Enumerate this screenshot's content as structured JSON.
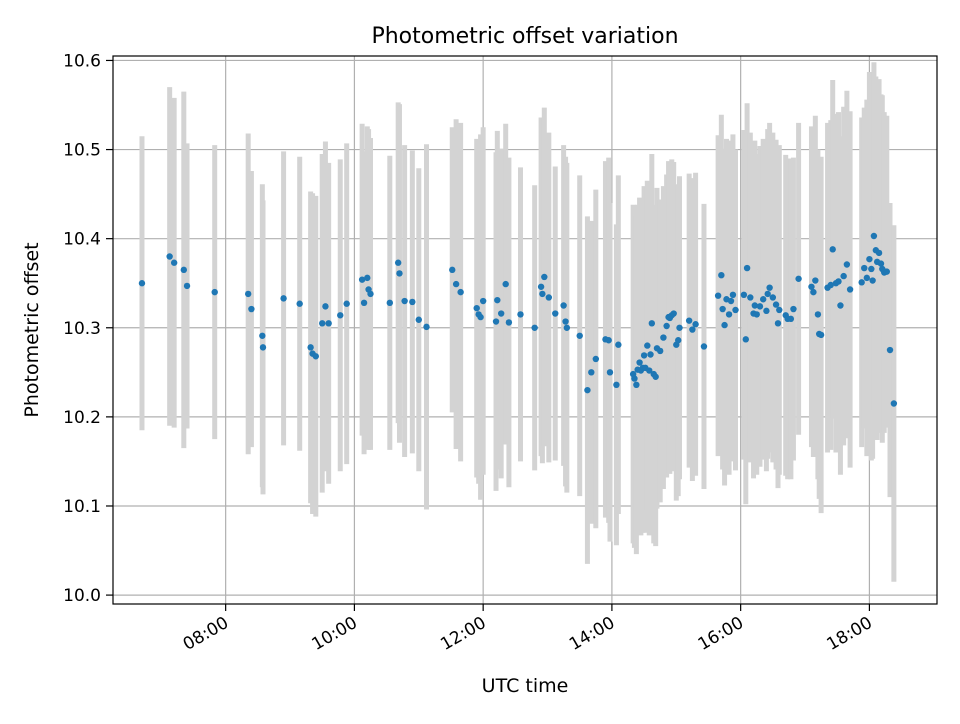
{
  "chart_data": {
    "type": "scatter",
    "title": "Photometric offset variation",
    "xlabel": "UTC time",
    "ylabel": "Photometric offset",
    "xlim": [
      6.25,
      19.05
    ],
    "ylim": [
      9.99,
      10.605
    ],
    "x_ticks": [
      {
        "value": 8,
        "label": "08:00"
      },
      {
        "value": 10,
        "label": "10:00"
      },
      {
        "value": 12,
        "label": "12:00"
      },
      {
        "value": 14,
        "label": "14:00"
      },
      {
        "value": 16,
        "label": "16:00"
      },
      {
        "value": 18,
        "label": "18:00"
      }
    ],
    "y_ticks": [
      {
        "value": 10.0,
        "label": "10.0"
      },
      {
        "value": 10.1,
        "label": "10.1"
      },
      {
        "value": 10.2,
        "label": "10.2"
      },
      {
        "value": 10.3,
        "label": "10.3"
      },
      {
        "value": 10.4,
        "label": "10.4"
      },
      {
        "value": 10.5,
        "label": "10.5"
      },
      {
        "value": 10.6,
        "label": "10.6"
      }
    ],
    "grid": true,
    "colors": {
      "points": "#1f77b4",
      "errorbars": "#d3d3d3",
      "grid": "#b0b0b0"
    },
    "series": [
      {
        "points": [
          [
            6.7,
            10.35,
            0.165
          ],
          [
            7.13,
            10.38,
            0.19
          ],
          [
            7.2,
            10.373,
            0.185
          ],
          [
            7.35,
            10.365,
            0.2
          ],
          [
            7.4,
            10.347,
            0.16
          ],
          [
            7.83,
            10.34,
            0.165
          ],
          [
            8.35,
            10.338,
            0.18
          ],
          [
            8.4,
            10.321,
            0.155
          ],
          [
            8.57,
            10.291,
            0.17
          ],
          [
            8.58,
            10.278,
            0.165
          ],
          [
            8.9,
            10.333,
            0.165
          ],
          [
            9.15,
            10.327,
            0.165
          ],
          [
            9.32,
            10.278,
            0.175
          ],
          [
            9.35,
            10.271,
            0.18
          ],
          [
            9.4,
            10.268,
            0.18
          ],
          [
            9.5,
            10.305,
            0.19
          ],
          [
            9.55,
            10.324,
            0.185
          ],
          [
            9.6,
            10.305,
            0.18
          ],
          [
            9.78,
            10.314,
            0.175
          ],
          [
            9.88,
            10.327,
            0.18
          ],
          [
            10.12,
            10.354,
            0.175
          ],
          [
            10.15,
            10.328,
            0.17
          ],
          [
            10.2,
            10.356,
            0.17
          ],
          [
            10.22,
            10.343,
            0.18
          ],
          [
            10.25,
            10.338,
            0.175
          ],
          [
            10.55,
            10.328,
            0.165
          ],
          [
            10.68,
            10.373,
            0.18
          ],
          [
            10.7,
            10.361,
            0.19
          ],
          [
            10.78,
            10.33,
            0.175
          ],
          [
            10.9,
            10.329,
            0.17
          ],
          [
            11.0,
            10.309,
            0.17
          ],
          [
            11.12,
            10.301,
            0.205
          ],
          [
            11.52,
            10.365,
            0.16
          ],
          [
            11.58,
            10.349,
            0.185
          ],
          [
            11.65,
            10.34,
            0.19
          ],
          [
            11.9,
            10.322,
            0.19
          ],
          [
            11.93,
            10.315,
            0.19
          ],
          [
            11.96,
            10.312,
            0.205
          ],
          [
            12.0,
            10.33,
            0.195
          ],
          [
            12.2,
            10.307,
            0.19
          ],
          [
            12.22,
            10.331,
            0.19
          ],
          [
            12.28,
            10.316,
            0.185
          ],
          [
            12.35,
            10.349,
            0.18
          ],
          [
            12.4,
            10.306,
            0.185
          ],
          [
            12.58,
            10.315,
            0.165
          ],
          [
            12.8,
            10.3,
            0.16
          ],
          [
            12.9,
            10.346,
            0.19
          ],
          [
            12.92,
            10.338,
            0.19
          ],
          [
            12.95,
            10.357,
            0.19
          ],
          [
            13.02,
            10.334,
            0.185
          ],
          [
            13.12,
            10.316,
            0.165
          ],
          [
            13.25,
            10.325,
            0.18
          ],
          [
            13.28,
            10.307,
            0.185
          ],
          [
            13.3,
            10.3,
            0.185
          ],
          [
            13.5,
            10.291,
            0.18
          ],
          [
            13.62,
            10.23,
            0.195
          ],
          [
            13.68,
            10.25,
            0.17
          ],
          [
            13.75,
            10.265,
            0.19
          ],
          [
            13.9,
            10.287,
            0.2
          ],
          [
            13.95,
            10.286,
            0.205
          ],
          [
            13.97,
            10.25,
            0.19
          ],
          [
            14.07,
            10.236,
            0.18
          ],
          [
            14.1,
            10.281,
            0.19
          ],
          [
            14.33,
            10.248,
            0.19
          ],
          [
            14.35,
            10.243,
            0.19
          ],
          [
            14.38,
            10.236,
            0.19
          ],
          [
            14.4,
            10.253,
            0.185
          ],
          [
            14.43,
            10.261,
            0.185
          ],
          [
            14.45,
            10.252,
            0.185
          ],
          [
            14.48,
            10.255,
            0.185
          ],
          [
            14.5,
            10.269,
            0.19
          ],
          [
            14.52,
            10.255,
            0.185
          ],
          [
            14.55,
            10.28,
            0.185
          ],
          [
            14.58,
            10.252,
            0.185
          ],
          [
            14.6,
            10.27,
            0.185
          ],
          [
            14.62,
            10.305,
            0.19
          ],
          [
            14.65,
            10.248,
            0.19
          ],
          [
            14.68,
            10.245,
            0.19
          ],
          [
            14.7,
            10.277,
            0.18
          ],
          [
            14.75,
            10.274,
            0.17
          ],
          [
            14.8,
            10.289,
            0.17
          ],
          [
            14.85,
            10.302,
            0.17
          ],
          [
            14.88,
            10.312,
            0.175
          ],
          [
            14.9,
            10.311,
            0.175
          ],
          [
            14.93,
            10.314,
            0.175
          ],
          [
            14.96,
            10.316,
            0.17
          ],
          [
            15.0,
            10.281,
            0.175
          ],
          [
            15.03,
            10.286,
            0.175
          ],
          [
            15.05,
            10.3,
            0.17
          ],
          [
            15.2,
            10.308,
            0.165
          ],
          [
            15.25,
            10.298,
            0.17
          ],
          [
            15.3,
            10.304,
            0.17
          ],
          [
            15.43,
            10.279,
            0.16
          ],
          [
            15.65,
            10.336,
            0.18
          ],
          [
            15.7,
            10.359,
            0.18
          ],
          [
            15.72,
            10.321,
            0.18
          ],
          [
            15.75,
            10.303,
            0.18
          ],
          [
            15.78,
            10.332,
            0.18
          ],
          [
            15.82,
            10.315,
            0.18
          ],
          [
            15.85,
            10.33,
            0.18
          ],
          [
            15.88,
            10.337,
            0.18
          ],
          [
            15.92,
            10.32,
            0.18
          ],
          [
            16.05,
            10.337,
            0.185
          ],
          [
            16.08,
            10.287,
            0.185
          ],
          [
            16.1,
            10.367,
            0.185
          ],
          [
            16.15,
            10.334,
            0.185
          ],
          [
            16.2,
            10.316,
            0.185
          ],
          [
            16.22,
            10.325,
            0.185
          ],
          [
            16.25,
            10.315,
            0.18
          ],
          [
            16.3,
            10.324,
            0.18
          ],
          [
            16.35,
            10.332,
            0.18
          ],
          [
            16.4,
            10.319,
            0.18
          ],
          [
            16.42,
            10.338,
            0.185
          ],
          [
            16.45,
            10.345,
            0.185
          ],
          [
            16.5,
            10.334,
            0.185
          ],
          [
            16.55,
            10.326,
            0.185
          ],
          [
            16.58,
            10.305,
            0.185
          ],
          [
            16.6,
            10.32,
            0.185
          ],
          [
            16.7,
            10.314,
            0.18
          ],
          [
            16.73,
            10.31,
            0.18
          ],
          [
            16.78,
            10.31,
            0.18
          ],
          [
            16.82,
            10.321,
            0.17
          ],
          [
            16.9,
            10.355,
            0.175
          ],
          [
            17.1,
            10.346,
            0.18
          ],
          [
            17.13,
            10.34,
            0.185
          ],
          [
            17.16,
            10.353,
            0.185
          ],
          [
            17.2,
            10.315,
            0.185
          ],
          [
            17.22,
            10.293,
            0.185
          ],
          [
            17.25,
            10.292,
            0.2
          ],
          [
            17.35,
            10.345,
            0.185
          ],
          [
            17.4,
            10.348,
            0.185
          ],
          [
            17.43,
            10.388,
            0.19
          ],
          [
            17.48,
            10.35,
            0.19
          ],
          [
            17.52,
            10.352,
            0.19
          ],
          [
            17.55,
            10.325,
            0.19
          ],
          [
            17.6,
            10.358,
            0.19
          ],
          [
            17.65,
            10.371,
            0.195
          ],
          [
            17.7,
            10.343,
            0.2
          ],
          [
            17.88,
            10.351,
            0.185
          ],
          [
            17.92,
            10.367,
            0.18
          ],
          [
            17.96,
            10.356,
            0.2
          ],
          [
            18.0,
            10.377,
            0.21
          ],
          [
            18.03,
            10.366,
            0.215
          ],
          [
            18.05,
            10.353,
            0.2
          ],
          [
            18.07,
            10.403,
            0.195
          ],
          [
            18.1,
            10.387,
            0.195
          ],
          [
            18.12,
            10.374,
            0.2
          ],
          [
            18.15,
            10.384,
            0.195
          ],
          [
            18.18,
            10.372,
            0.19
          ],
          [
            18.2,
            10.366,
            0.195
          ],
          [
            18.23,
            10.362,
            0.18
          ],
          [
            18.27,
            10.363,
            0.175
          ],
          [
            18.32,
            10.275,
            0.165
          ],
          [
            18.38,
            10.215,
            0.2
          ]
        ]
      }
    ]
  }
}
